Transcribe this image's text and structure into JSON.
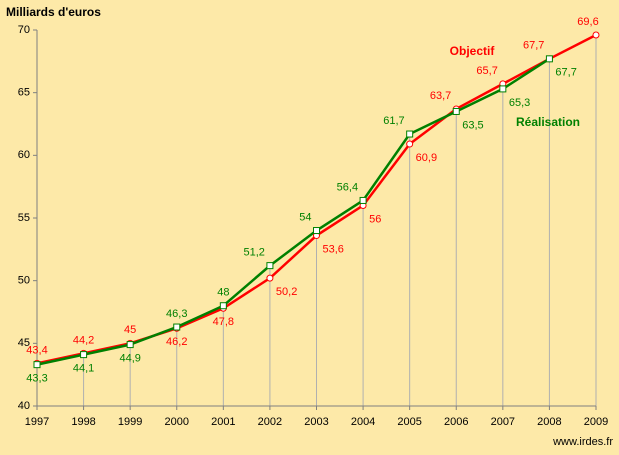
{
  "chart_data": {
    "type": "line",
    "title": "Milliards d'euros",
    "annotation": "www.irdes.fr",
    "x": [
      1997,
      1998,
      1999,
      2000,
      2001,
      2002,
      2003,
      2004,
      2005,
      2006,
      2007,
      2008,
      2009
    ],
    "xlim": [
      1997,
      2009
    ],
    "xticks": [
      1997,
      1998,
      1999,
      2000,
      2001,
      2002,
      2003,
      2004,
      2005,
      2006,
      2007,
      2008,
      2009
    ],
    "ylim": [
      40,
      70
    ],
    "yticks": [
      40,
      45,
      50,
      55,
      60,
      65,
      70
    ],
    "series": [
      {
        "name": "Objectif",
        "color": "#ff0000",
        "marker": "circle",
        "values": [
          43.4,
          44.2,
          45,
          46.2,
          47.8,
          50.2,
          53.6,
          56,
          60.9,
          63.7,
          65.7,
          67.7,
          69.6
        ],
        "value_labels": [
          "43,4",
          "44,2",
          "45",
          "46,2",
          "47,8",
          "50,2",
          "53,6",
          "56",
          "60,9",
          "63,7",
          "65,7",
          "67,7",
          "69,6"
        ]
      },
      {
        "name": "Réalisation",
        "color": "#008000",
        "marker": "square",
        "values": [
          43.3,
          44.1,
          44.9,
          46.3,
          48,
          51.2,
          54,
          56.4,
          61.7,
          63.5,
          65.3,
          67.7,
          null
        ],
        "value_labels": [
          "43,3",
          "44,1",
          "44,9",
          "46,3",
          "48",
          "51,2",
          "54",
          "56,4",
          "61,7",
          "63,5",
          "65,3",
          "67,7",
          null
        ]
      }
    ]
  }
}
